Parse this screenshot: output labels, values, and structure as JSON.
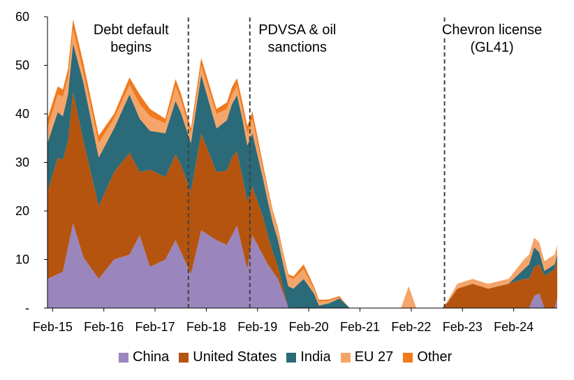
{
  "chart_data": {
    "type": "area",
    "stacked": true,
    "title": "",
    "xlabel": "",
    "ylabel": "",
    "ylim": [
      0,
      60
    ],
    "y_ticks": [
      "-",
      "10",
      "20",
      "30",
      "40",
      "50",
      "60"
    ],
    "x_start": 2015.0,
    "x_end": 2024.95,
    "step": 0.1,
    "x_ticks": [
      {
        "label": "Feb-15",
        "x": 2015.1
      },
      {
        "label": "Feb-16",
        "x": 2016.1
      },
      {
        "label": "Feb-17",
        "x": 2017.1
      },
      {
        "label": "Feb-18",
        "x": 2018.1
      },
      {
        "label": "Feb-19",
        "x": 2019.1
      },
      {
        "label": "Feb-20",
        "x": 2020.1
      },
      {
        "label": "Feb-21",
        "x": 2021.1
      },
      {
        "label": "Feb-22",
        "x": 2022.1
      },
      {
        "label": "Feb-23",
        "x": 2023.1
      },
      {
        "label": "Feb-24",
        "x": 2024.1
      }
    ],
    "annotations": [
      {
        "x": 2017.75,
        "lines": [
          "Debt default",
          "begins"
        ],
        "side": "left"
      },
      {
        "x": 2018.95,
        "lines": [
          "PDVSA & oil",
          "sanctions"
        ],
        "side": "right"
      },
      {
        "x": 2022.75,
        "lines": [
          "Chevron license",
          "(GL41)"
        ],
        "side": "right"
      }
    ],
    "series": [
      {
        "name": "China",
        "color": "#9a86bd",
        "points": [
          [
            2015,
            6
          ],
          [
            2015.3,
            7.5
          ],
          [
            2015.5,
            17.5
          ],
          [
            2015.7,
            10.5
          ],
          [
            2016,
            6
          ],
          [
            2016.3,
            10
          ],
          [
            2016.6,
            11
          ],
          [
            2016.8,
            15
          ],
          [
            2017,
            8.5
          ],
          [
            2017.3,
            10
          ],
          [
            2017.5,
            14
          ],
          [
            2017.8,
            7
          ],
          [
            2018,
            16
          ],
          [
            2018.3,
            14
          ],
          [
            2018.5,
            13
          ],
          [
            2018.7,
            17
          ],
          [
            2018.9,
            8
          ],
          [
            2019,
            15
          ],
          [
            2019.3,
            9
          ],
          [
            2019.5,
            6
          ],
          [
            2019.7,
            0
          ],
          [
            2024.4,
            0
          ],
          [
            2024.5,
            2.5
          ],
          [
            2024.6,
            3
          ],
          [
            2024.7,
            0
          ],
          [
            2024.9,
            0
          ],
          [
            2024.95,
            2
          ]
        ]
      },
      {
        "name": "United States",
        "color": "#b5540e",
        "points": [
          [
            2015,
            18
          ],
          [
            2015.2,
            24
          ],
          [
            2015.4,
            22
          ],
          [
            2015.5,
            27
          ],
          [
            2015.7,
            24
          ],
          [
            2016,
            15
          ],
          [
            2016.3,
            18
          ],
          [
            2016.6,
            21
          ],
          [
            2016.8,
            13
          ],
          [
            2017,
            20
          ],
          [
            2017.3,
            17
          ],
          [
            2017.6,
            18
          ],
          [
            2017.8,
            17
          ],
          [
            2018,
            20
          ],
          [
            2018.3,
            14
          ],
          [
            2018.6,
            16
          ],
          [
            2018.9,
            14
          ],
          [
            2019,
            10
          ],
          [
            2019.2,
            8
          ],
          [
            2019.4,
            4
          ],
          [
            2019.6,
            1
          ],
          [
            2019.7,
            0
          ],
          [
            2022.7,
            0
          ],
          [
            2022.8,
            1
          ],
          [
            2023,
            4
          ],
          [
            2023.3,
            5
          ],
          [
            2023.6,
            4
          ],
          [
            2024,
            5
          ],
          [
            2024.3,
            6
          ],
          [
            2024.6,
            6
          ],
          [
            2024.9,
            8
          ]
        ]
      },
      {
        "name": "India",
        "color": "#2b6a78",
        "points": [
          [
            2015,
            10
          ],
          [
            2015.3,
            9
          ],
          [
            2015.5,
            10
          ],
          [
            2015.7,
            12
          ],
          [
            2016,
            10
          ],
          [
            2016.3,
            9
          ],
          [
            2016.6,
            12
          ],
          [
            2016.8,
            11
          ],
          [
            2017,
            8
          ],
          [
            2017.3,
            9
          ],
          [
            2017.5,
            11
          ],
          [
            2017.8,
            10
          ],
          [
            2018,
            12
          ],
          [
            2018.3,
            9
          ],
          [
            2018.6,
            11
          ],
          [
            2018.8,
            12
          ],
          [
            2019,
            11
          ],
          [
            2019.2,
            8
          ],
          [
            2019.4,
            6
          ],
          [
            2019.6,
            5
          ],
          [
            2019.8,
            4
          ],
          [
            2020,
            6
          ],
          [
            2020.2,
            3
          ],
          [
            2020.3,
            0.5
          ],
          [
            2020.5,
            1
          ],
          [
            2020.7,
            2
          ],
          [
            2020.9,
            0
          ],
          [
            2022.7,
            0
          ],
          [
            2024,
            0
          ],
          [
            2024.3,
            2
          ],
          [
            2024.5,
            4
          ],
          [
            2024.7,
            1
          ],
          [
            2024.95,
            1
          ]
        ]
      },
      {
        "name": "EU 27",
        "color": "#f5a56a",
        "points": [
          [
            2015,
            3
          ],
          [
            2015.3,
            4
          ],
          [
            2015.5,
            3
          ],
          [
            2015.7,
            2
          ],
          [
            2016,
            3
          ],
          [
            2016.3,
            2
          ],
          [
            2016.6,
            2
          ],
          [
            2016.8,
            3
          ],
          [
            2017,
            3
          ],
          [
            2017.3,
            2
          ],
          [
            2017.5,
            3
          ],
          [
            2017.8,
            2
          ],
          [
            2018,
            2
          ],
          [
            2018.3,
            3
          ],
          [
            2018.6,
            2
          ],
          [
            2018.8,
            2
          ],
          [
            2019,
            3
          ],
          [
            2019.2,
            2
          ],
          [
            2019.4,
            2
          ],
          [
            2019.6,
            2
          ],
          [
            2019.8,
            2
          ],
          [
            2020,
            2
          ],
          [
            2020.2,
            1
          ],
          [
            2020.5,
            0.5
          ],
          [
            2020.8,
            0
          ],
          [
            2021.9,
            0
          ],
          [
            2022.05,
            4.5
          ],
          [
            2022.2,
            0
          ],
          [
            2022.7,
            0
          ],
          [
            2023,
            1
          ],
          [
            2023.5,
            1
          ],
          [
            2024,
            1
          ],
          [
            2024.3,
            2
          ],
          [
            2024.6,
            2
          ],
          [
            2024.95,
            2
          ]
        ]
      },
      {
        "name": "Other",
        "color": "#ef7a1d",
        "points": [
          [
            2015,
            2
          ],
          [
            2015.3,
            1.5
          ],
          [
            2015.5,
            2
          ],
          [
            2015.7,
            2
          ],
          [
            2016,
            1.5
          ],
          [
            2016.3,
            1
          ],
          [
            2016.6,
            1.5
          ],
          [
            2016.8,
            2
          ],
          [
            2017,
            1.5
          ],
          [
            2017.3,
            1
          ],
          [
            2017.5,
            1.5
          ],
          [
            2017.8,
            1
          ],
          [
            2018,
            1.5
          ],
          [
            2018.3,
            1
          ],
          [
            2018.6,
            1.5
          ],
          [
            2018.8,
            1.5
          ],
          [
            2019,
            1.5
          ],
          [
            2019.2,
            1
          ],
          [
            2019.4,
            0.5
          ],
          [
            2019.6,
            0.5
          ],
          [
            2019.8,
            0.5
          ],
          [
            2020,
            1
          ],
          [
            2020.2,
            0.5
          ],
          [
            2020.4,
            0.3
          ],
          [
            2020.7,
            0.3
          ],
          [
            2020.9,
            0
          ],
          [
            2024.95,
            0
          ]
        ]
      }
    ]
  }
}
